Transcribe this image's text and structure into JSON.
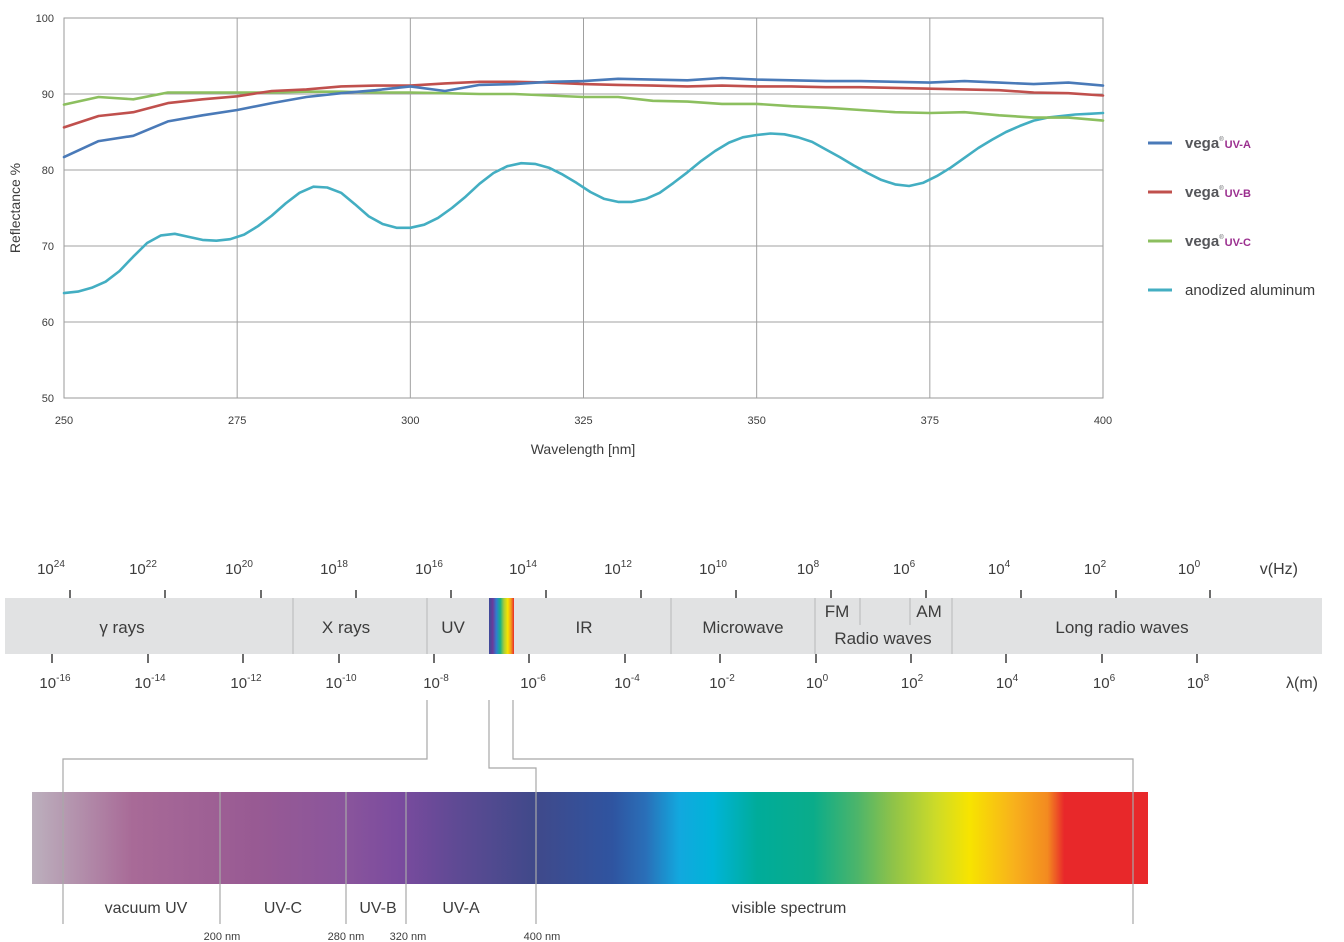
{
  "chart_data": [
    {
      "type": "line",
      "xlabel": "Wavelength [nm]",
      "ylabel": "Reflectance %",
      "xlim": [
        250,
        400
      ],
      "ylim": [
        50,
        100
      ],
      "xticks": [
        "250",
        "275",
        "300",
        "325",
        "350",
        "375",
        "400"
      ],
      "yticks": [
        "50",
        "60",
        "70",
        "80",
        "90",
        "100"
      ],
      "grid": true,
      "legend_position": "right",
      "series": [
        {
          "name": "vega",
          "suffix": "UV-A",
          "color": "#4a7ab8",
          "x": [
            250,
            255,
            260,
            265,
            270,
            275,
            280,
            285,
            290,
            295,
            300,
            305,
            310,
            315,
            320,
            325,
            330,
            335,
            340,
            345,
            350,
            355,
            360,
            365,
            370,
            375,
            380,
            385,
            390,
            395,
            400
          ],
          "y": [
            81.7,
            83.8,
            84.5,
            86.4,
            87.2,
            87.9,
            88.8,
            89.6,
            90.1,
            90.5,
            91.0,
            90.4,
            91.2,
            91.3,
            91.6,
            91.7,
            92.0,
            91.9,
            91.8,
            92.1,
            91.9,
            91.8,
            91.7,
            91.7,
            91.6,
            91.5,
            91.7,
            91.5,
            91.3,
            91.5,
            91.1
          ]
        },
        {
          "name": "vega",
          "suffix": "UV-B",
          "color": "#c0504d",
          "x": [
            250,
            255,
            260,
            265,
            270,
            275,
            280,
            285,
            290,
            295,
            300,
            305,
            310,
            315,
            320,
            325,
            330,
            335,
            340,
            345,
            350,
            355,
            360,
            365,
            370,
            375,
            380,
            385,
            390,
            395,
            400
          ],
          "y": [
            85.6,
            87.1,
            87.6,
            88.8,
            89.3,
            89.7,
            90.4,
            90.6,
            91.0,
            91.1,
            91.1,
            91.4,
            91.6,
            91.6,
            91.5,
            91.3,
            91.2,
            91.1,
            91.0,
            91.1,
            91.0,
            91.0,
            90.9,
            90.9,
            90.8,
            90.7,
            90.6,
            90.5,
            90.2,
            90.1,
            89.8
          ]
        },
        {
          "name": "vega",
          "suffix": "UV-C",
          "color": "#8cbf5f",
          "x": [
            250,
            255,
            260,
            265,
            270,
            275,
            280,
            285,
            290,
            295,
            300,
            305,
            310,
            315,
            320,
            325,
            330,
            335,
            340,
            345,
            350,
            355,
            360,
            365,
            370,
            375,
            380,
            385,
            390,
            395,
            400
          ],
          "y": [
            88.6,
            89.6,
            89.3,
            90.2,
            90.2,
            90.2,
            90.2,
            90.3,
            90.3,
            90.2,
            90.2,
            90.1,
            90.0,
            90.0,
            89.8,
            89.6,
            89.6,
            89.1,
            89.0,
            88.7,
            88.7,
            88.4,
            88.2,
            87.9,
            87.6,
            87.5,
            87.6,
            87.2,
            86.9,
            86.9,
            86.5
          ]
        },
        {
          "name": "anodized aluminum",
          "color": "#43aec2",
          "x": [
            250,
            252,
            254,
            256,
            258,
            260,
            262,
            264,
            266,
            268,
            270,
            272,
            274,
            276,
            278,
            280,
            282,
            284,
            286,
            288,
            290,
            292,
            294,
            296,
            298,
            300,
            302,
            304,
            306,
            308,
            310,
            312,
            314,
            316,
            318,
            320,
            322,
            324,
            326,
            328,
            330,
            332,
            334,
            336,
            338,
            340,
            342,
            344,
            346,
            348,
            350,
            352,
            354,
            356,
            358,
            360,
            362,
            364,
            366,
            368,
            370,
            372,
            374,
            376,
            378,
            380,
            382,
            384,
            386,
            388,
            390,
            392,
            394,
            396,
            398,
            400
          ],
          "y": [
            63.8,
            64.0,
            64.5,
            65.3,
            66.7,
            68.6,
            70.4,
            71.4,
            71.6,
            71.2,
            70.8,
            70.7,
            70.9,
            71.5,
            72.6,
            74.0,
            75.6,
            77.0,
            77.8,
            77.7,
            77.0,
            75.5,
            73.9,
            72.9,
            72.4,
            72.4,
            72.8,
            73.7,
            75.0,
            76.5,
            78.2,
            79.6,
            80.5,
            80.9,
            80.8,
            80.3,
            79.4,
            78.3,
            77.1,
            76.2,
            75.8,
            75.8,
            76.2,
            77.0,
            78.3,
            79.7,
            81.2,
            82.5,
            83.6,
            84.3,
            84.6,
            84.8,
            84.7,
            84.3,
            83.7,
            82.7,
            81.7,
            80.6,
            79.6,
            78.7,
            78.1,
            77.9,
            78.3,
            79.2,
            80.3,
            81.6,
            82.9,
            84.0,
            85.0,
            85.8,
            86.5,
            86.9,
            87.1,
            87.3,
            87.4,
            87.5
          ]
        }
      ]
    },
    {
      "type": "diagram",
      "frequency_axis": {
        "unit": "v(Hz)",
        "labels": [
          {
            "base": "10",
            "exp": "24"
          },
          {
            "base": "10",
            "exp": "22"
          },
          {
            "base": "10",
            "exp": "20"
          },
          {
            "base": "10",
            "exp": "18"
          },
          {
            "base": "10",
            "exp": "16"
          },
          {
            "base": "10",
            "exp": "14"
          },
          {
            "base": "10",
            "exp": "12"
          },
          {
            "base": "10",
            "exp": "10"
          },
          {
            "base": "10",
            "exp": "8"
          },
          {
            "base": "10",
            "exp": "6"
          },
          {
            "base": "10",
            "exp": "4"
          },
          {
            "base": "10",
            "exp": "2"
          },
          {
            "base": "10",
            "exp": "0"
          }
        ]
      },
      "wavelength_axis": {
        "unit": "λ(m)",
        "labels": [
          {
            "base": "10",
            "exp": "-16"
          },
          {
            "base": "10",
            "exp": "-14"
          },
          {
            "base": "10",
            "exp": "-12"
          },
          {
            "base": "10",
            "exp": "-10"
          },
          {
            "base": "10",
            "exp": "-8"
          },
          {
            "base": "10",
            "exp": "-6"
          },
          {
            "base": "10",
            "exp": "-4"
          },
          {
            "base": "10",
            "exp": "-2"
          },
          {
            "base": "10",
            "exp": "0"
          },
          {
            "base": "10",
            "exp": "2"
          },
          {
            "base": "10",
            "exp": "4"
          },
          {
            "base": "10",
            "exp": "6"
          },
          {
            "base": "10",
            "exp": "8"
          }
        ]
      },
      "bands": [
        "γ rays",
        "X rays",
        "UV",
        "IR",
        "Microwave",
        "FM",
        "AM",
        "Radio waves",
        "Long radio waves"
      ]
    },
    {
      "type": "diagram",
      "regions": [
        "vacuum UV",
        "UV-C",
        "UV-B",
        "UV-A",
        "visible spectrum"
      ],
      "boundaries": [
        "200 nm",
        "280 nm",
        "320 nm",
        "400 nm"
      ]
    }
  ]
}
